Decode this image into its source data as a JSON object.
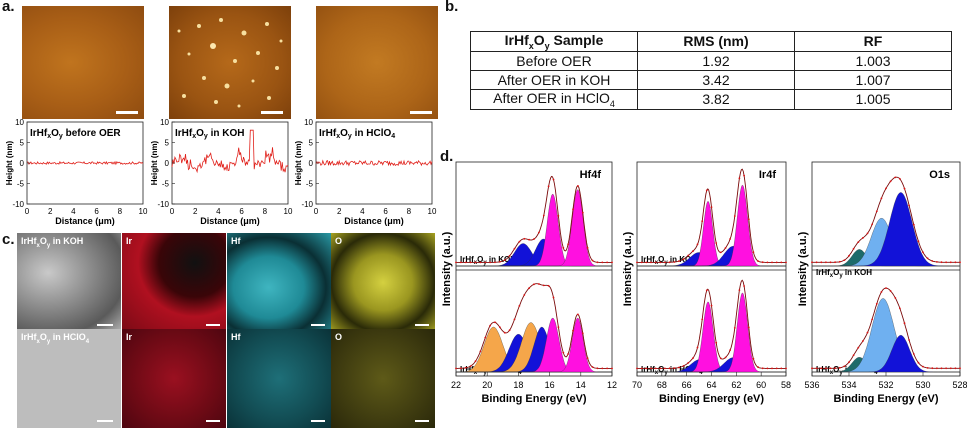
{
  "panels": {
    "a": "a.",
    "b": "b.",
    "c": "c.",
    "d": "d."
  },
  "afm_profiles": [
    {
      "label": "IrHfxOy before OER",
      "ylabel": "Height (nm)",
      "xlabel": "Distance (μm)"
    },
    {
      "label": "IrHfxOy in KOH",
      "ylabel": "Height (nm)",
      "xlabel": "Distance (μm)"
    },
    {
      "label": "IrHfxOy in HClO4",
      "ylabel": "Height (nm)",
      "xlabel": "Distance (μm)"
    }
  ],
  "afm_axes": {
    "yticks": [
      "10",
      "5",
      "0",
      "-5",
      "-10"
    ],
    "xticks": [
      "0",
      "2",
      "4",
      "6",
      "8",
      "10"
    ]
  },
  "table": {
    "headers": [
      "IrHfxOy Sample",
      "RMS (nm)",
      "RF"
    ],
    "rows": [
      [
        "Before OER",
        "1.92",
        "1.003"
      ],
      [
        "After OER in KOH",
        "3.42",
        "1.007"
      ],
      [
        "After OER in HClO4",
        "3.82",
        "1.005"
      ]
    ]
  },
  "eds": {
    "row1": {
      "sample": "IrHfxOy in KOH",
      "maps": [
        "Ir",
        "Hf",
        "O"
      ]
    },
    "row2": {
      "sample": "IrHfxOy in HClO4",
      "maps": [
        "Ir",
        "Hf",
        "O"
      ]
    }
  },
  "xps": {
    "ylabel": "Intensity (a.u.)",
    "xlabel": "Binding Energy (eV)",
    "sample_koh": "IrHfxOy in KOH",
    "sample_hclo4": "IrHfxOy in HClO4",
    "panels": [
      {
        "title": "Hf4f",
        "xticks": [
          "22",
          "20",
          "18",
          "16",
          "14",
          "12"
        ]
      },
      {
        "title": "Ir4f",
        "xticks": [
          "70",
          "68",
          "66",
          "64",
          "62",
          "60",
          "58"
        ]
      },
      {
        "title": "O1s",
        "xticks": [
          "536",
          "534",
          "532",
          "530",
          "528"
        ]
      }
    ]
  },
  "colors": {
    "profile": "#e0201a",
    "blue": "#1212d8",
    "magenta": "#ff10e0",
    "orange": "#f5a64a",
    "lightblue": "#6fb0f0",
    "teal": "#1d6b6b"
  }
}
